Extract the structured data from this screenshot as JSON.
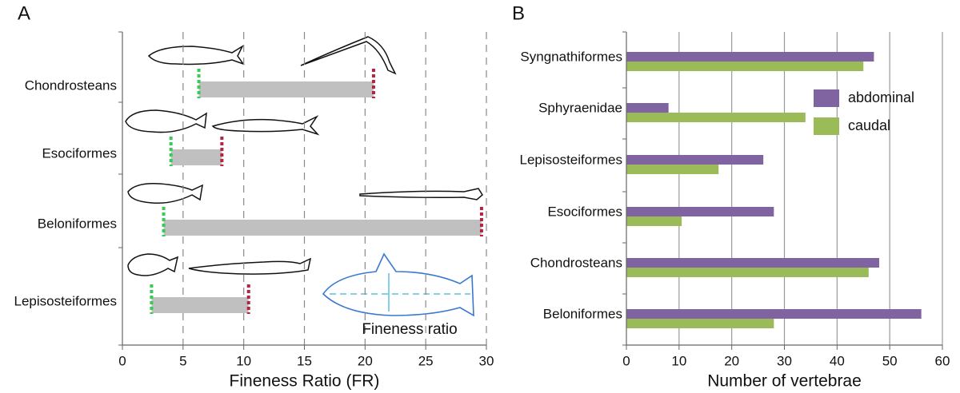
{
  "chart_data": [
    {
      "type": "range",
      "label": "A",
      "xlabel": "Fineness Ratio (FR)",
      "annotation": "Fineness ratio",
      "categories": [
        "Chondrosteans",
        "Esociformes",
        "Beloniformes",
        "Lepisosteiformes"
      ],
      "ranges": [
        [
          6.3,
          20.7
        ],
        [
          4,
          8.2
        ],
        [
          3.4,
          29.6
        ],
        [
          2.4,
          10.4
        ]
      ],
      "color": "#c0c0c0",
      "low_color": "#33cc55",
      "high_color": "#b8213f",
      "xlim": [
        0,
        30
      ],
      "xticks": [
        0,
        5,
        10,
        15,
        20,
        25,
        30
      ],
      "grid": true
    },
    {
      "type": "hbar",
      "label": "B",
      "xlabel": "Number of vertebrae",
      "categories": [
        "Syngnathiformes",
        "Sphyraenidae",
        "Lepisosteiformes",
        "Esociformes",
        "Chondrosteans",
        "Beloniformes"
      ],
      "series": [
        {
          "name": "abdominal",
          "color": "#8064a2",
          "values": [
            47,
            8,
            26,
            28,
            48,
            56
          ]
        },
        {
          "name": "caudal",
          "color": "#9bbb59",
          "values": [
            45,
            34,
            17.5,
            10.5,
            46,
            28
          ]
        }
      ],
      "xlim": [
        0,
        60
      ],
      "xticks": [
        0,
        10,
        20,
        30,
        40,
        50,
        60
      ],
      "grid": true,
      "legend": "upper right"
    }
  ]
}
